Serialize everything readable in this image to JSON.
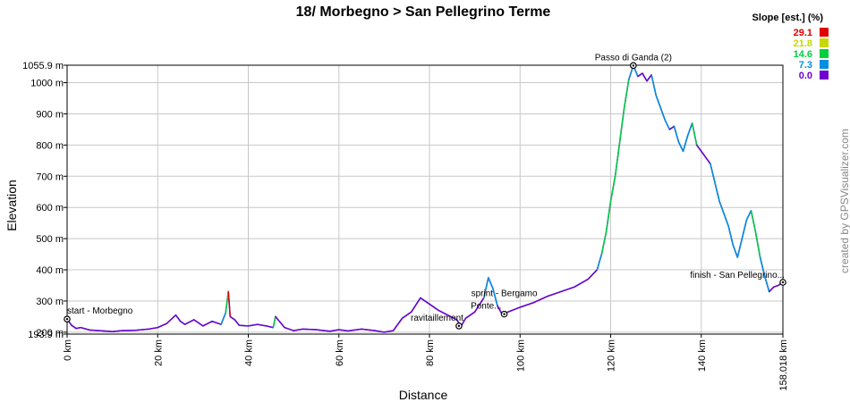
{
  "chart_data": {
    "type": "line",
    "title": "18/ Morbegno > San Pellegrino Terme",
    "xlabel": "Distance",
    "ylabel": "Elevation",
    "xlim": [
      0,
      158.018
    ],
    "ylim": [
      193.9,
      1055.9
    ],
    "x_ticks": [
      "0 km",
      "20 km",
      "40 km",
      "60 km",
      "80 km",
      "100 km",
      "120 km",
      "140 km",
      "158.018 km"
    ],
    "y_ticks": [
      "193.9 m",
      "200 m",
      "300 m",
      "400 m",
      "500 m",
      "600 m",
      "700 m",
      "800 m",
      "900 m",
      "1000 m",
      "1055.9 m"
    ],
    "grid": true,
    "legend": {
      "title": "Slope [est.] (%)",
      "placement": "top-right",
      "entries": [
        {
          "label": "29.1",
          "color": "#e00000"
        },
        {
          "label": "21.8",
          "color": "#c8d800"
        },
        {
          "label": "14.6",
          "color": "#00d040"
        },
        {
          "label": "7.3",
          "color": "#0090e0"
        },
        {
          "label": "0.0",
          "color": "#7000d0"
        }
      ]
    },
    "series": [
      {
        "x": [
          0,
          1,
          2,
          3,
          5,
          8,
          10,
          12,
          15,
          18,
          20,
          22,
          24,
          25,
          26,
          28,
          30,
          32,
          34,
          35,
          35.6,
          36,
          37,
          38,
          40,
          42,
          44,
          45.5,
          46,
          48,
          50,
          52,
          55,
          58,
          60,
          62,
          65,
          68,
          70,
          72,
          74,
          76,
          78,
          80,
          82,
          84,
          86,
          87,
          88,
          90,
          92,
          93,
          94,
          95,
          96,
          97,
          100,
          103,
          106,
          109,
          112,
          115,
          117,
          118,
          119,
          120,
          121,
          122,
          123,
          124,
          125,
          126,
          127,
          128,
          129,
          130,
          131,
          132,
          133,
          134,
          135,
          136,
          137,
          138,
          139,
          140,
          141,
          142,
          143,
          144,
          145,
          146,
          147,
          148,
          149,
          150,
          151,
          152,
          153,
          154,
          155,
          156,
          157,
          158.018
        ],
        "y": [
          242,
          222,
          212,
          215,
          207,
          204,
          202,
          205,
          206,
          210,
          215,
          228,
          255,
          235,
          225,
          240,
          220,
          235,
          225,
          262,
          330,
          250,
          240,
          222,
          220,
          225,
          220,
          215,
          250,
          215,
          205,
          210,
          208,
          203,
          208,
          204,
          210,
          205,
          200,
          205,
          245,
          265,
          310,
          290,
          270,
          255,
          240,
          220,
          245,
          265,
          310,
          375,
          340,
          285,
          258,
          263,
          280,
          295,
          315,
          330,
          345,
          370,
          400,
          450,
          520,
          620,
          700,
          810,
          920,
          1010,
          1055,
          1020,
          1030,
          1005,
          1025,
          960,
          920,
          880,
          850,
          860,
          810,
          780,
          830,
          870,
          800,
          780,
          760,
          740,
          680,
          620,
          580,
          540,
          480,
          440,
          500,
          560,
          590,
          520,
          440,
          380,
          330,
          345,
          350,
          360
        ]
      }
    ],
    "markers": [
      {
        "label": "start - Morbegno",
        "x": 0,
        "y": 242
      },
      {
        "label": "ravitaillement",
        "x": 86.5,
        "y": 220
      },
      {
        "label": "sprint - Bergamo Ponte...",
        "x": 96.5,
        "y": 258
      },
      {
        "label": "Passo di Ganda (2)",
        "x": 125,
        "y": 1055
      },
      {
        "label": "finish - San Pellegrino...",
        "x": 158.018,
        "y": 360
      }
    ]
  },
  "credit": "created by GPSVisualizer.com"
}
